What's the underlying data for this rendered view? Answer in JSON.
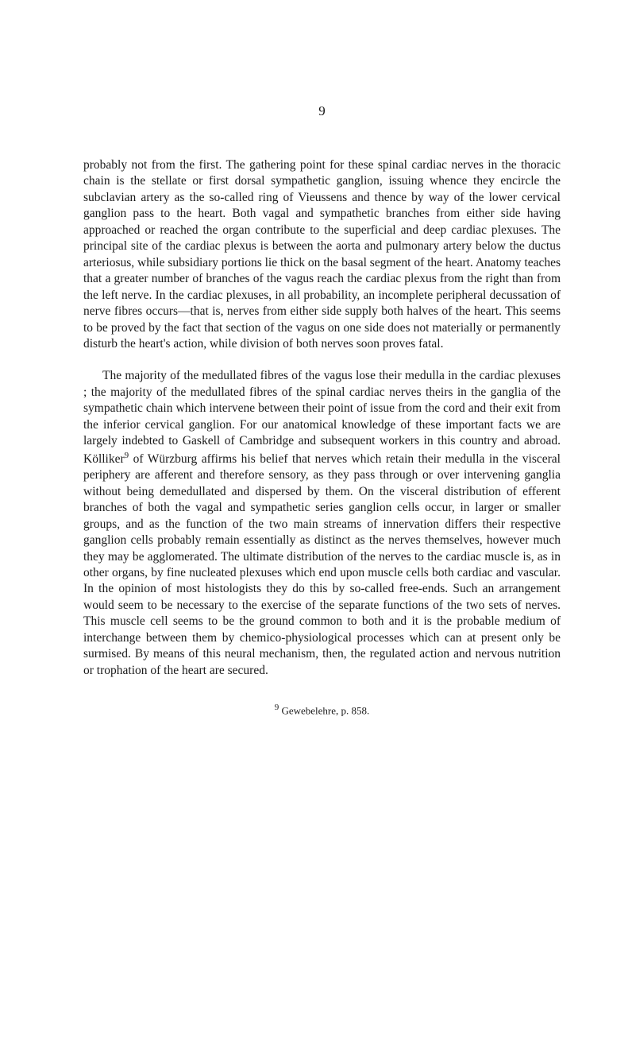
{
  "page_number": "9",
  "paragraph_1": "probably not from the first. The gathering point for these spinal cardiac nerves in the thoracic chain is the stellate or first dorsal sympathetic ganglion, issuing whence they encircle the subclavian artery as the so-called ring of Vieussens and thence by way of the lower cervical ganglion pass to the heart. Both vagal and sympathetic branches from either side having approached or reached the organ contribute to the superficial and deep cardiac plexuses. The principal site of the cardiac plexus is between the aorta and pulmonary artery below the ductus arteriosus, while sub­sidiary portions lie thick on the basal segment of the heart. Anatomy teaches that a greater number of branches of the vagus reach the cardiac plexus from the right than from the left nerve. In the cardiac plexuses, in all probability, an incomplete peripheral decussation of nerve fibres occurs—that is, nerves from either side supply both halves of the heart. This seems to be proved by the fact that section of the vagus on one side does not materially or permanently disturb the heart's action, while division of both nerves soon proves fatal.",
  "paragraph_2_part1": "The majority of the medullated fibres of the vagus lose their medulla in the cardiac plexuses ; the majority of the medullated fibres of the spinal cardiac nerves theirs in the ganglia of the sympathetic chain which intervene between their point of issue from the cord and their exit from the inferior cervical ganglion. For our anatomical knowledge of these important facts we are largely indebted to Gaskell of Cambridge and subsequent workers in this country and abroad. Kölliker",
  "paragraph_2_sup": "9",
  "paragraph_2_part2": " of Würzburg affirms his belief that nerves which retain their medulla in the visceral periphery are afferent and therefore sensory, as they pass through or over intervening ganglia without being demedullated and dispersed by them. On the visceral distribution of efferent branches of both the vagal and sympathetic series ganglion cells occur, in larger or smaller groups, and as the function of the two main streams of innervation differs their respec­tive ganglion cells probably remain essentially as distinct as the nerves themselves, however much they may be agglomerated. The ultimate distribution of the nerves to the cardiac muscle is, as in other organs, by fine nucleated plexuses which end upon muscle cells both cardiac and vascular. In the opinion of most histologists they do this by so-called free-ends. Such an arrangement would seem to be necessary to the exercise of the separate functions of the two sets of nerves. This muscle cell seems to be the ground common to both and it is the probable medium of interchange between them by chemico-physiological pro­cesses which can at present only be surmised. By means of this neural mechanism, then, the regulated action and nervous nutrition or trophation of the heart are secured.",
  "footnote_sup": "9",
  "footnote_text": " Gewebelehre, p. 858."
}
